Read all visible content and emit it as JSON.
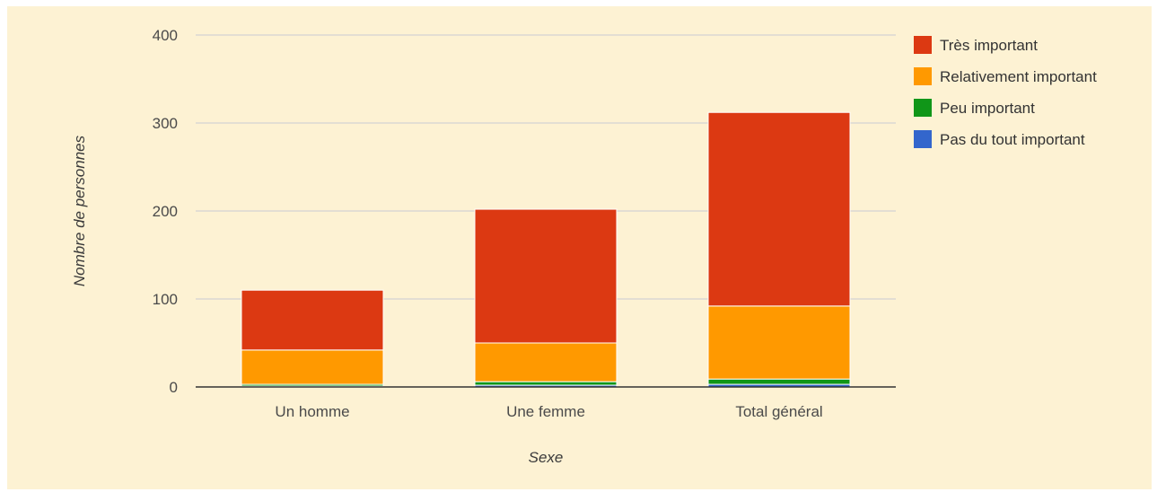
{
  "chart_data": {
    "type": "bar",
    "stacked": true,
    "categories": [
      "Un homme",
      "Une femme",
      "Total général"
    ],
    "series": [
      {
        "name": "Pas du tout important",
        "color": "#3366cc",
        "values": [
          1,
          2,
          3
        ]
      },
      {
        "name": "Peu important",
        "color": "#109618",
        "values": [
          2,
          4,
          6
        ]
      },
      {
        "name": "Relativement important",
        "color": "#ff9900",
        "values": [
          39,
          44,
          83
        ]
      },
      {
        "name": "Très important",
        "color": "#dc3912",
        "values": [
          68,
          152,
          220
        ]
      }
    ],
    "legend_order": [
      "Très important",
      "Relativement important",
      "Peu important",
      "Pas du tout important"
    ],
    "xlabel": "Sexe",
    "ylabel": "Nombre de personnes",
    "ylim": [
      0,
      400
    ],
    "yticks": [
      0,
      100,
      200,
      300,
      400
    ],
    "grid": true,
    "legend_position": "right",
    "background_color": "#fdf2d3",
    "gridline_color": "#c9cbd3"
  }
}
